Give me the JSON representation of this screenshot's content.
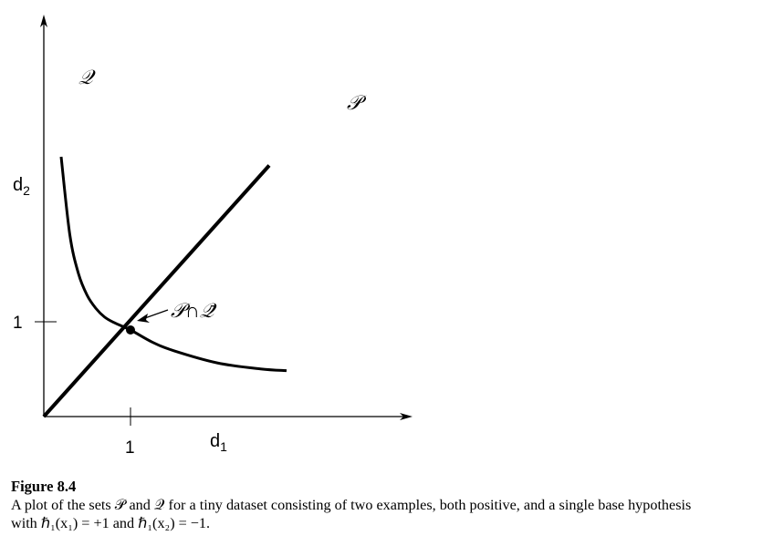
{
  "chart_data": {
    "type": "line",
    "xlabel_main": "d",
    "xlabel_sub": "1",
    "ylabel_main": "d",
    "ylabel_sub": "2",
    "x_tick": "1",
    "y_tick": "1",
    "xlim": [
      0,
      3.1
    ],
    "ylim": [
      0,
      3.3
    ],
    "series": [
      {
        "name": "𝒫",
        "kind": "line",
        "points": [
          [
            0,
            0
          ],
          [
            2.6,
            2.9
          ]
        ]
      },
      {
        "name": "𝒬",
        "kind": "curve",
        "x": [
          0.2,
          0.3,
          0.4,
          0.5,
          0.6,
          0.7,
          0.8,
          1.0,
          1.25,
          1.5,
          2.0,
          2.5,
          2.8
        ],
        "y": [
          3.0,
          2.1,
          1.65,
          1.4,
          1.25,
          1.15,
          1.09,
          1.0,
          0.86,
          0.76,
          0.62,
          0.55,
          0.53
        ]
      }
    ],
    "annotation": {
      "text": "𝒫∩𝒬̄",
      "point": [
        1,
        1
      ]
    }
  },
  "caption": {
    "title": "Figure 8.4",
    "line1": "A plot of the sets 𝒫 and 𝒬 for a tiny dataset consisting of two examples, both positive, and a single base hypothesis",
    "line2": "with ℏ₁(x₁) = +1 and ℏ₁(x₂) = −1."
  }
}
